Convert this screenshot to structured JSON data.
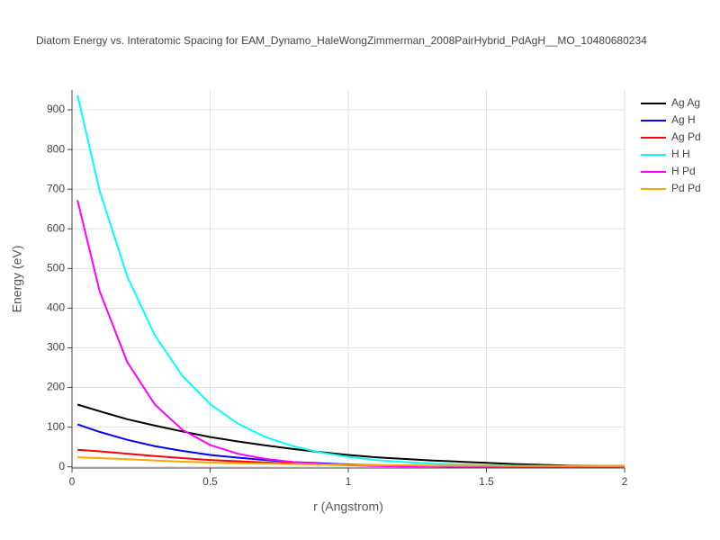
{
  "chart_data": {
    "type": "line",
    "title": "Diatom Energy vs. Interatomic Spacing for EAM_Dynamo_HaleWongZimmerman_2008PairHybrid_PdAgH__MO_10480680234",
    "x_label": "r (Angstrom)",
    "y_label": "Energy (eV)",
    "x": [
      0.02,
      0.1,
      0.2,
      0.3,
      0.4,
      0.5,
      0.6,
      0.7,
      0.8,
      0.9,
      1.0,
      1.1,
      1.2,
      1.3,
      1.4,
      1.5,
      1.6,
      1.7,
      1.8,
      1.9,
      2.0
    ],
    "series": [
      {
        "name": "Ag Ag",
        "color": "#000000",
        "values": [
          157,
          140,
          120,
          104,
          89,
          75,
          64,
          54,
          45,
          37,
          30,
          24,
          20,
          16,
          13,
          10,
          7,
          5,
          3,
          2,
          2
        ]
      },
      {
        "name": "Ag H",
        "color": "#0000ff",
        "values": [
          107,
          88,
          68,
          52,
          40,
          30,
          23,
          17,
          12,
          9,
          6,
          4,
          3,
          2,
          1,
          1,
          0,
          0,
          0,
          0,
          0
        ]
      },
      {
        "name": "Ag Pd",
        "color": "#ff0000",
        "values": [
          43,
          39,
          33,
          27,
          22,
          17,
          14,
          11,
          8,
          6,
          5,
          4,
          3,
          2,
          2,
          1,
          1,
          1,
          0,
          0,
          0
        ]
      },
      {
        "name": "H H",
        "color": "#00ffff",
        "values": [
          937,
          696,
          480,
          331,
          229,
          158,
          109,
          75,
          52,
          36,
          25,
          17,
          12,
          8,
          6,
          4,
          3,
          2,
          1,
          1,
          0
        ]
      },
      {
        "name": "H Pd",
        "color": "#ff00ff",
        "values": [
          672,
          443,
          264,
          157,
          93,
          55,
          33,
          20,
          12,
          7,
          4,
          2,
          1,
          1,
          0,
          0,
          0,
          0,
          0,
          0,
          0
        ]
      },
      {
        "name": "Pd Pd",
        "color": "#ffa500",
        "values": [
          24,
          22,
          19,
          16,
          13,
          11,
          9,
          8,
          7,
          6,
          5,
          4,
          4,
          3,
          3,
          3,
          2,
          2,
          2,
          2,
          2
        ]
      }
    ],
    "xlim": [
      0,
      2
    ],
    "xticks": [
      0,
      0.5,
      1,
      1.5,
      2
    ],
    "ylim": [
      -3,
      950
    ],
    "yticks": [
      0,
      100,
      200,
      300,
      400,
      500,
      600,
      700,
      800,
      900
    ],
    "grid": true,
    "legend": "outside-right"
  }
}
